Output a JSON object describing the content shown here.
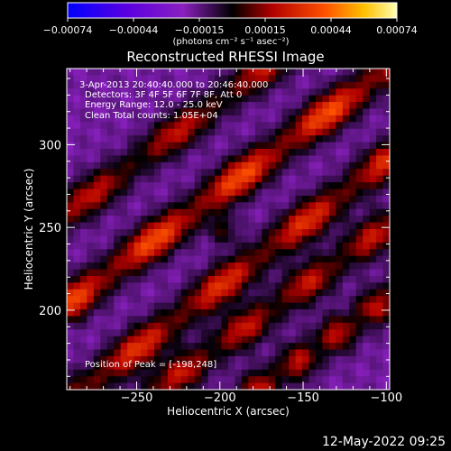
{
  "chart_data": {
    "type": "heatmap",
    "title": "Reconstructed RHESSI Image",
    "xlabel": "Heliocentric X (arcsec)",
    "ylabel": "Heliocentric Y (arcsec)",
    "xlim": [
      -292,
      -98
    ],
    "ylim": [
      152,
      346
    ],
    "xticks": [
      -250,
      -200,
      -150,
      -100
    ],
    "yticks": [
      200,
      250,
      300
    ],
    "colorbar": {
      "ticks": [
        "-0.00074",
        "-0.00044",
        "-0.00015",
        "0.00015",
        "0.00044",
        "0.00074"
      ],
      "label": "(photons cm⁻² s⁻¹ asec⁻²)",
      "range": [
        -0.00074,
        0.00074
      ]
    },
    "annotations": [
      "3-Apr-2013 20:40:40.000 to 20:46:40.000",
      "Detectors: 3F 4F 5F 6F 7F 8F, Att 0",
      "Energy Range: 12.0 - 25.0 keV",
      "Clean     Total counts: 1.05E+04"
    ],
    "peak_label": "Position of Peak = [-198,248]",
    "peak": [
      -198,
      248
    ],
    "stripes": [
      {
        "from": [
          -290,
          260
        ],
        "to": [
          -100,
          400
        ],
        "amp": 0.0004
      },
      {
        "from": [
          -290,
          205
        ],
        "to": [
          -100,
          345
        ],
        "amp": 0.00058
      },
      {
        "from": [
          -285,
          150
        ],
        "to": [
          -100,
          290
        ],
        "amp": 0.0005
      },
      {
        "from": [
          -240,
          150
        ],
        "to": [
          -100,
          250
        ],
        "amp": 0.00042
      },
      {
        "from": [
          -180,
          150
        ],
        "to": [
          -95,
          210
        ],
        "amp": 0.0004
      }
    ]
  },
  "footer": {
    "timestamp": "12-May-2022 09:25"
  }
}
